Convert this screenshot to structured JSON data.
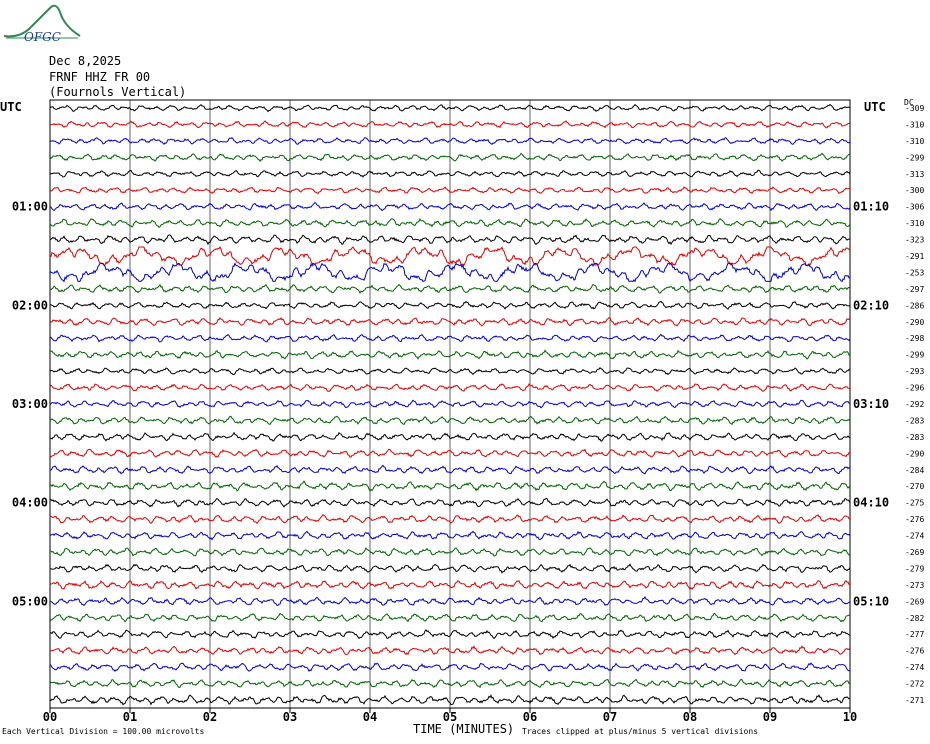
{
  "logo": {
    "text": "OFGC",
    "icon": "ofgc-logo-icon"
  },
  "header": {
    "date": "Dec 8,2025",
    "station": "FRNF HHZ FR 00",
    "location": "(Fournols Vertical)"
  },
  "left_axis_label": "UTC",
  "right_axis_label": "UTC",
  "dc_label": "DC",
  "footer": {
    "scale": "Each Vertical Division =  100.00 microvolts",
    "xlabel": "TIME (MINUTES)",
    "clip_note": "Traces clipped at plus/minus 5 vertical divisions"
  },
  "chart_data": {
    "type": "line",
    "title": "FRNF HHZ FR 00",
    "xlabel": "TIME (MINUTES)",
    "xlim": [
      0,
      10
    ],
    "x_ticks": [
      "00",
      "01",
      "02",
      "03",
      "04",
      "05",
      "06",
      "07",
      "08",
      "09",
      "10"
    ],
    "trace_colors": [
      "#000000",
      "#e00000",
      "#0000d0",
      "#006400"
    ],
    "left_hour_labels": [
      "01:00",
      "02:00",
      "03:00",
      "04:00",
      "05:00"
    ],
    "right_hour_labels": [
      "01:10",
      "02:10",
      "03:10",
      "04:10",
      "05:10"
    ],
    "dc_offsets": [
      -309,
      -310,
      -310,
      -299,
      -313,
      -300,
      -306,
      -310,
      -323,
      -291,
      -253,
      -297,
      -286,
      -290,
      -298,
      -299,
      -293,
      -296,
      -292,
      -283,
      -283,
      -290,
      -284,
      -270,
      -275,
      -276,
      -274,
      -269,
      -279,
      -273,
      -269,
      -282,
      -277,
      -276,
      -274,
      -272,
      -271
    ],
    "trace_amplitudes": [
      0.8,
      0.8,
      0.8,
      0.9,
      0.8,
      0.8,
      0.9,
      1.0,
      1.1,
      1.6,
      1.6,
      1.0,
      0.9,
      1.0,
      0.9,
      1.0,
      0.8,
      0.9,
      0.9,
      1.0,
      1.0,
      1.0,
      1.0,
      1.1,
      1.0,
      1.0,
      1.0,
      1.0,
      1.0,
      1.1,
      1.0,
      1.0,
      1.0,
      1.0,
      1.0,
      1.0,
      1.1
    ]
  }
}
